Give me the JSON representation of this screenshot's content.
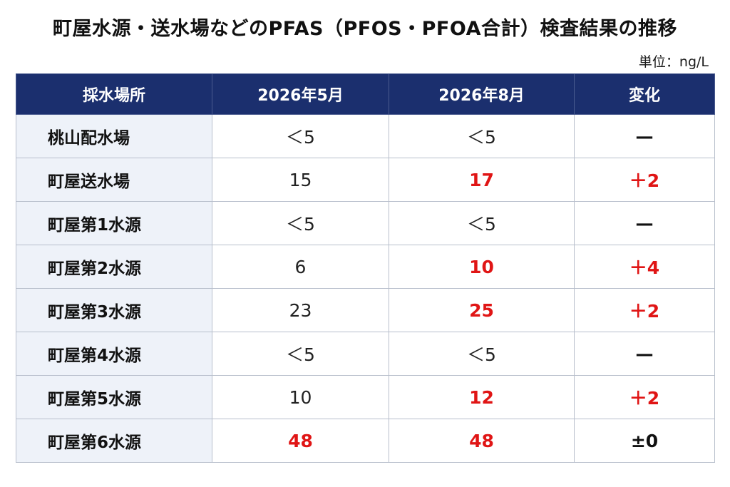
{
  "title": "町屋水源・送水場などのPFAS（PFOS・PFOA合計）検査結果の推移",
  "unit": "単位：ng/L",
  "colors": {
    "header_bg": "#1b2f6e",
    "header_text": "#ffffff",
    "site_bg": "#eef2f9",
    "highlight_red": "#e01515"
  },
  "table": {
    "headers": [
      "採水場所",
      "2026年5月",
      "2026年8月",
      "変化"
    ],
    "rows": [
      {
        "site": "桃山配水場",
        "may": "＜5",
        "aug": "＜5",
        "change": "—"
      },
      {
        "site": "町屋送水場",
        "may": "15",
        "aug": "17",
        "change": "＋2"
      },
      {
        "site": "町屋第1水源",
        "may": "＜5",
        "aug": "＜5",
        "change": "—"
      },
      {
        "site": "町屋第2水源",
        "may": "6",
        "aug": "10",
        "change": "＋4"
      },
      {
        "site": "町屋第3水源",
        "may": "23",
        "aug": "25",
        "change": "＋2"
      },
      {
        "site": "町屋第4水源",
        "may": "＜5",
        "aug": "＜5",
        "change": "—"
      },
      {
        "site": "町屋第5水源",
        "may": "10",
        "aug": "12",
        "change": "＋2"
      },
      {
        "site": "町屋第6水源",
        "may": "48",
        "aug": "48",
        "change": "±0"
      }
    ]
  }
}
